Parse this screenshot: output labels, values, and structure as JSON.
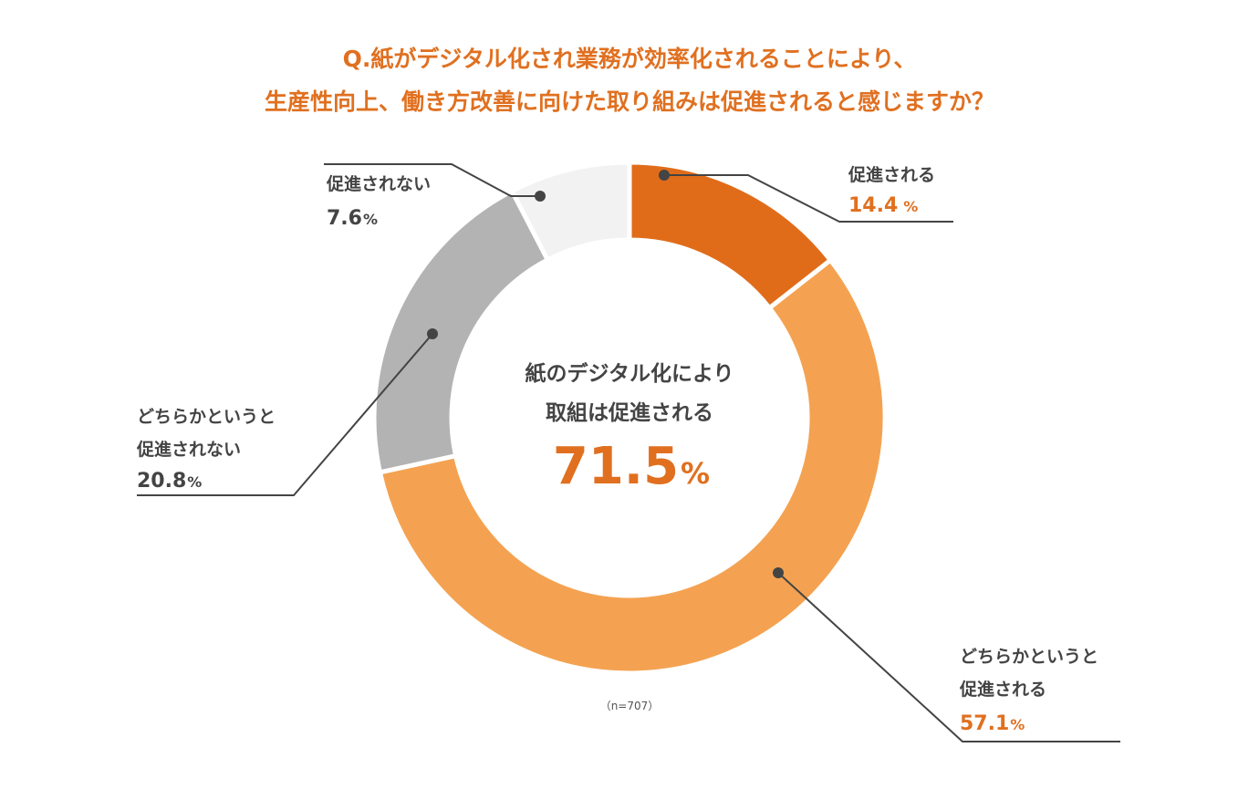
{
  "chart_data": {
    "type": "pie",
    "title_lines": [
      "Q.紙がデジタル化され業務が効率化されることにより、",
      "生産性向上、働き方改善に向けた取り組みは促進されると感じますか？"
    ],
    "slices": [
      {
        "label_lines": [
          "促進される"
        ],
        "value_text": "14.4",
        "pct_text": "%",
        "value": 14.4,
        "color": "#e06c1a",
        "value_color": "#e07020"
      },
      {
        "label_lines": [
          "どちらかというと",
          "促進される"
        ],
        "value_text": "57.1",
        "pct_text": "%",
        "value": 57.1,
        "color": "#f4a251",
        "value_color": "#e07020"
      },
      {
        "label_lines": [
          "どちらかというと",
          "促進されない"
        ],
        "value_text": "20.8",
        "pct_text": "%",
        "value": 20.8,
        "color": "#b3b3b3",
        "value_color": "#444444"
      },
      {
        "label_lines": [
          "促進されない"
        ],
        "value_text": "7.6",
        "pct_text": "%",
        "value": 7.6,
        "color": "#f2f2f2",
        "value_color": "#444444"
      }
    ],
    "center": {
      "lines": [
        "紙のデジタル化により",
        "取組は促進される"
      ],
      "value_text": "71.5",
      "pct_text": "%"
    },
    "note": "（n=707）"
  }
}
